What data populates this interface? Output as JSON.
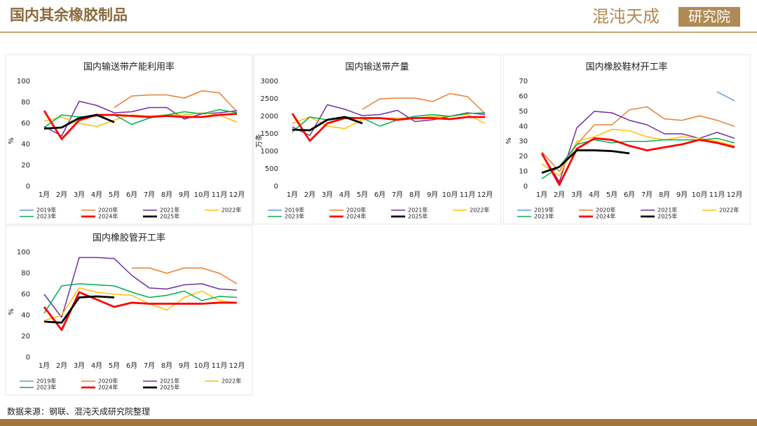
{
  "header": {
    "title": "国内其余橡胶制品",
    "logo_main": "混沌天成",
    "logo_box": "研究院"
  },
  "footer": {
    "source": "数据来源：钢联、混沌天成研究院整理"
  },
  "chart_data": [
    {
      "type": "line",
      "title": "国内输送带产能利用率",
      "ylabel": "%",
      "categories": [
        "1月",
        "2月",
        "3月",
        "4月",
        "5月",
        "6月",
        "7月",
        "8月",
        "9月",
        "10月",
        "11月",
        "12月"
      ],
      "ylim": [
        0,
        100
      ],
      "yticks": [
        0,
        20,
        40,
        60,
        80,
        100
      ],
      "series": [
        {
          "name": "2019年",
          "color": "#5b9bd5",
          "line_width": 1.5,
          "values": [
            null,
            null,
            null,
            null,
            null,
            null,
            null,
            null,
            null,
            null,
            null,
            null
          ]
        },
        {
          "name": "2020年",
          "color": "#ed7d31",
          "line_width": 1.5,
          "values": [
            null,
            null,
            null,
            null,
            75,
            86,
            87,
            87,
            84,
            91,
            89,
            71
          ]
        },
        {
          "name": "2021年",
          "color": "#7030a0",
          "line_width": 1.5,
          "values": [
            57,
            48,
            81,
            77,
            70,
            71,
            75,
            75,
            64,
            69,
            70,
            72
          ]
        },
        {
          "name": "2022年",
          "color": "#ffc000",
          "line_width": 1.5,
          "values": [
            62,
            66,
            60,
            57,
            63,
            68,
            67,
            68,
            68,
            70,
            68,
            61
          ]
        },
        {
          "name": "2023年",
          "color": "#00b050",
          "line_width": 1.5,
          "values": [
            56,
            68,
            66,
            67,
            68,
            59,
            65,
            68,
            71,
            69,
            73,
            70
          ]
        },
        {
          "name": "2024年",
          "color": "#ff0000",
          "line_width": 2.8,
          "values": [
            72,
            45,
            63,
            68,
            68,
            67,
            66,
            67,
            66,
            66,
            68,
            69
          ]
        },
        {
          "name": "2025年",
          "color": "#000000",
          "line_width": 2.8,
          "values": [
            55,
            56,
            65,
            68,
            61,
            null,
            null,
            null,
            null,
            null,
            null,
            null
          ]
        }
      ]
    },
    {
      "type": "line",
      "title": "国内输送带产量",
      "ylabel": "万条",
      "categories": [
        "1月",
        "2月",
        "3月",
        "4月",
        "5月",
        "6月",
        "7月",
        "8月",
        "9月",
        "10月",
        "11月",
        "12月"
      ],
      "ylim": [
        0,
        3000
      ],
      "yticks": [
        0,
        500,
        1000,
        1500,
        2000,
        2500,
        3000
      ],
      "series": [
        {
          "name": "2019年",
          "color": "#5b9bd5",
          "line_width": 1.5,
          "values": [
            null,
            null,
            null,
            null,
            null,
            null,
            null,
            null,
            null,
            null,
            null,
            null
          ]
        },
        {
          "name": "2020年",
          "color": "#ed7d31",
          "line_width": 1.5,
          "values": [
            null,
            null,
            null,
            null,
            2200,
            2500,
            2520,
            2520,
            2420,
            2650,
            2560,
            2080
          ]
        },
        {
          "name": "2021年",
          "color": "#7030a0",
          "line_width": 1.5,
          "values": [
            1700,
            1450,
            2330,
            2200,
            2020,
            2050,
            2170,
            1850,
            1900,
            2000,
            2100,
            2050
          ]
        },
        {
          "name": "2022年",
          "color": "#ffc000",
          "line_width": 1.5,
          "values": [
            1800,
            1980,
            1720,
            1650,
            1900,
            1950,
            1950,
            1950,
            2000,
            2000,
            2050,
            1800
          ]
        },
        {
          "name": "2023年",
          "color": "#00b050",
          "line_width": 1.5,
          "values": [
            1550,
            1980,
            1900,
            1980,
            1950,
            1720,
            1900,
            2000,
            2050,
            2000,
            2080,
            2100
          ]
        },
        {
          "name": "2024年",
          "color": "#ff0000",
          "line_width": 2.8,
          "values": [
            2080,
            1300,
            1800,
            1950,
            1950,
            1950,
            1900,
            1950,
            1950,
            1920,
            1980,
            1980
          ]
        },
        {
          "name": "2025年",
          "color": "#000000",
          "line_width": 2.8,
          "values": [
            1620,
            1600,
            1900,
            1980,
            1800,
            null,
            null,
            null,
            null,
            null,
            null,
            null
          ]
        }
      ]
    },
    {
      "type": "line",
      "title": "国内橡胶鞋材开工率",
      "ylabel": "%",
      "categories": [
        "1月",
        "2月",
        "3月",
        "4月",
        "5月",
        "6月",
        "7月",
        "8月",
        "9月",
        "10月",
        "11月",
        "12月"
      ],
      "ylim": [
        0,
        70
      ],
      "yticks": [
        0,
        10,
        20,
        30,
        40,
        50,
        60,
        70
      ],
      "series": [
        {
          "name": "2019年",
          "color": "#5b9bd5",
          "line_width": 1.5,
          "values": [
            null,
            null,
            null,
            null,
            null,
            null,
            null,
            null,
            null,
            null,
            63,
            57
          ]
        },
        {
          "name": "2020年",
          "color": "#ed7d31",
          "line_width": 1.5,
          "values": [
            23,
            10,
            28,
            41,
            41,
            51,
            53,
            45,
            44,
            47,
            44,
            40
          ]
        },
        {
          "name": "2021年",
          "color": "#7030a0",
          "line_width": 1.5,
          "values": [
            22,
            3,
            39,
            50,
            49,
            44,
            41,
            35,
            35,
            32,
            36,
            32
          ]
        },
        {
          "name": "2022年",
          "color": "#ffc000",
          "line_width": 1.5,
          "values": [
            15,
            7,
            30,
            33,
            38,
            37,
            33,
            31,
            33,
            32,
            30,
            27
          ]
        },
        {
          "name": "2023年",
          "color": "#00b050",
          "line_width": 1.5,
          "values": [
            5,
            13,
            28,
            31,
            29,
            30,
            30,
            31,
            31,
            31,
            32,
            29
          ]
        },
        {
          "name": "2024年",
          "color": "#ff0000",
          "line_width": 2.8,
          "values": [
            22,
            1,
            25,
            32,
            31,
            27,
            24,
            26,
            28,
            31,
            29,
            26
          ]
        },
        {
          "name": "2025年",
          "color": "#000000",
          "line_width": 2.8,
          "values": [
            9,
            13,
            24,
            24,
            23.5,
            22,
            null,
            null,
            null,
            null,
            null,
            null
          ]
        }
      ]
    },
    {
      "type": "line",
      "title": "国内橡胶管开工率",
      "ylabel": "%",
      "categories": [
        "1月",
        "2月",
        "3月",
        "4月",
        "5月",
        "6月",
        "7月",
        "8月",
        "9月",
        "10月",
        "11月",
        "12月"
      ],
      "ylim": [
        0,
        100
      ],
      "yticks": [
        0,
        20,
        40,
        60,
        80,
        100
      ],
      "series": [
        {
          "name": "2019年",
          "color": "#5b9bd5",
          "line_width": 1.5,
          "values": [
            null,
            null,
            null,
            null,
            null,
            null,
            null,
            null,
            null,
            null,
            null,
            null
          ]
        },
        {
          "name": "2020年",
          "color": "#ed7d31",
          "line_width": 1.5,
          "values": [
            null,
            null,
            null,
            null,
            null,
            85,
            85,
            80,
            85,
            85,
            80,
            70
          ]
        },
        {
          "name": "2021年",
          "color": "#7030a0",
          "line_width": 1.5,
          "values": [
            60,
            38,
            95,
            95,
            94,
            78,
            66,
            65,
            69,
            70,
            65,
            64
          ]
        },
        {
          "name": "2022年",
          "color": "#ffc000",
          "line_width": 1.5,
          "values": [
            35,
            40,
            66,
            62,
            60,
            59,
            51,
            45,
            57,
            63,
            54,
            52
          ]
        },
        {
          "name": "2023年",
          "color": "#00b050",
          "line_width": 1.5,
          "values": [
            42,
            68,
            70,
            69,
            68,
            62,
            57,
            59,
            63,
            54,
            58,
            57
          ]
        },
        {
          "name": "2024年",
          "color": "#ff0000",
          "line_width": 2.8,
          "values": [
            48,
            26,
            62,
            55,
            48,
            52,
            51,
            51,
            51,
            51,
            52,
            52
          ]
        },
        {
          "name": "2025年",
          "color": "#000000",
          "line_width": 2.8,
          "values": [
            34,
            33,
            57,
            58,
            57,
            null,
            null,
            null,
            null,
            null,
            null,
            null
          ]
        }
      ]
    }
  ]
}
